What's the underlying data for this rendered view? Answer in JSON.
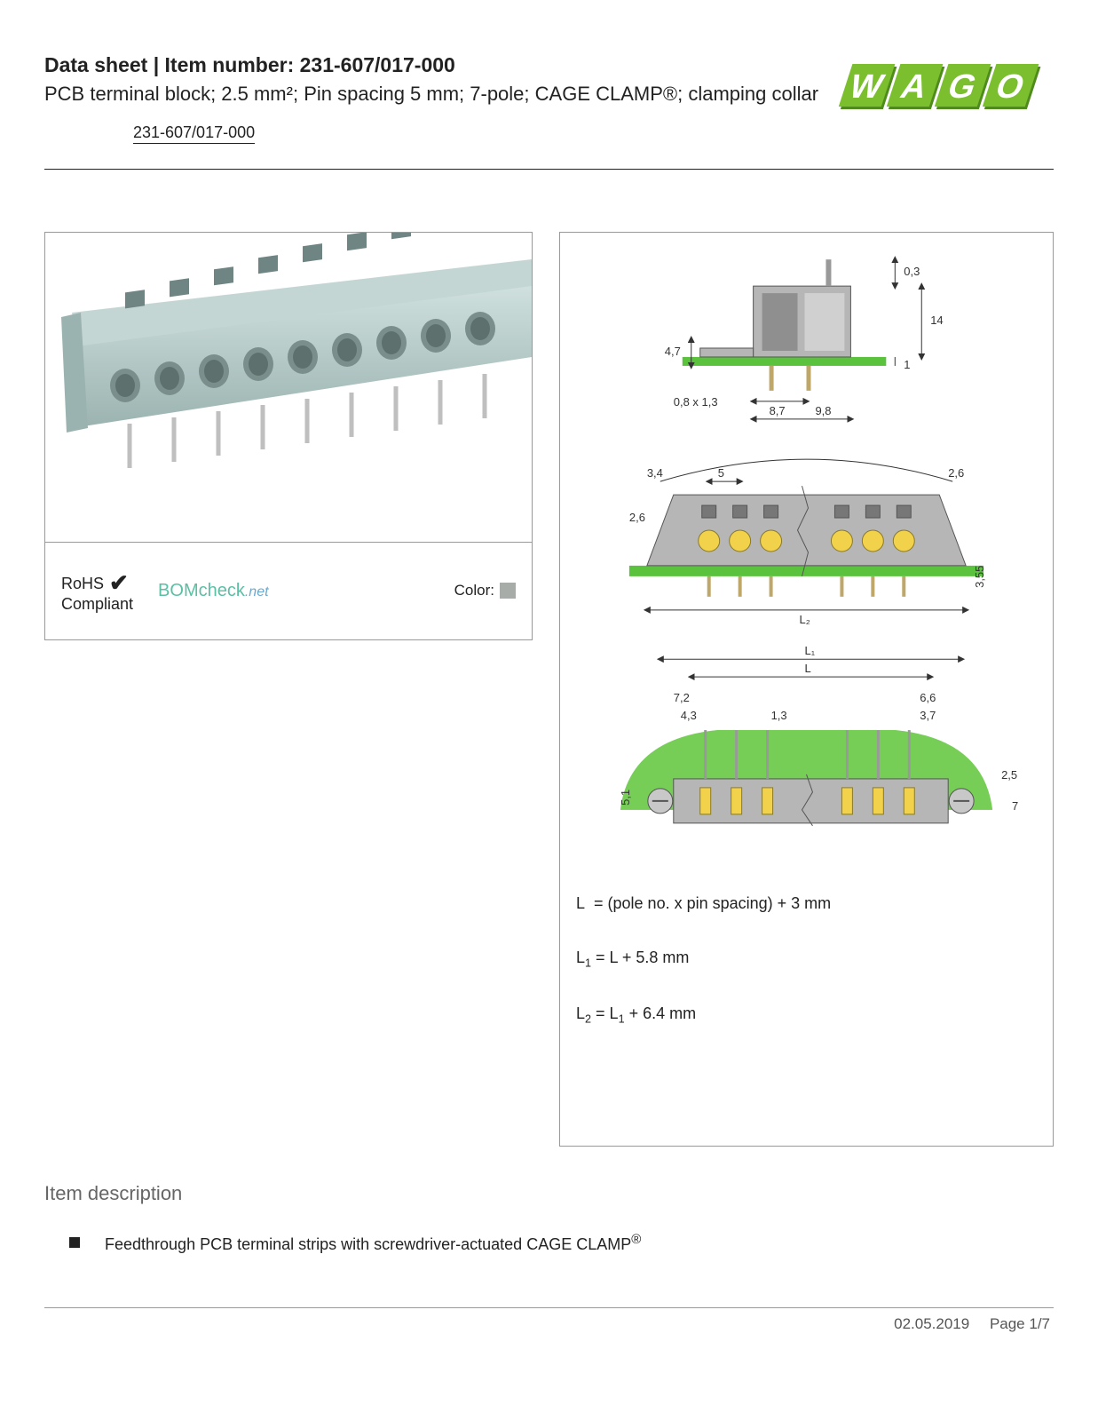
{
  "header": {
    "title": "Data sheet  |  Item number: 231-607/017-000",
    "description": "PCB terminal block; 2.5 mm²; Pin spacing 5 mm; 7-pole; CAGE CLAMP®; clamping collar",
    "item_link": "231-607/017-000"
  },
  "logo": {
    "text": "WAGO",
    "fill": "#7bbf2e",
    "shadow": "#4e8a1c"
  },
  "photo_panel": {
    "rohs_line1": "RoHS",
    "rohs_line2": "Compliant",
    "bomcheck_main": "BOMcheck",
    "bomcheck_suffix": ".net",
    "color_label": "Color:",
    "swatch_color": "#a8aca9",
    "terminal_body_color": "#b7cac8",
    "terminal_shadow_color": "#8aa3a0",
    "pin_color": "#bfbfbf"
  },
  "drawing": {
    "colors": {
      "body": "#b6b6b6",
      "body_dark": "#8f8f8f",
      "pcb": "#5bc23d",
      "pcb_top": "#9fe07f",
      "contact": "#f2d24a",
      "outline": "#555"
    },
    "side_view": {
      "d1": "0,3",
      "d2": "14",
      "d3": "1",
      "d4": "4,7",
      "d5": "0,8 x 1,3",
      "d6": "8,7",
      "d7": "9,8"
    },
    "front_view": {
      "d1": "3,4",
      "d2": "5",
      "d3": "2,6",
      "d4": "2,6",
      "d5": "3,55",
      "d_L2": "L₂"
    },
    "top_view": {
      "d_L1": "L₁",
      "d_L": "L",
      "d1": "7,2",
      "d2": "4,3",
      "d3": "1,3",
      "d4": "6,6",
      "d5": "3,7",
      "d6": "2,5",
      "d7": "7",
      "d8": "5,1"
    },
    "formulas": {
      "f1_html": "L&nbsp; = (pole no. x pin spacing) + 3 mm",
      "f2_html": "L<sub>1</sub> = L + 5.8 mm",
      "f3_html": "L<sub>2</sub> = L<sub>1</sub> + 6.4 mm"
    }
  },
  "section": {
    "title": "Item description",
    "bullet1_html": "Feedthrough PCB terminal strips with screwdriver-actuated CAGE CLAMP<sup>®</sup>"
  },
  "footer": {
    "date": "02.05.2019",
    "page": "Page 1/7"
  }
}
